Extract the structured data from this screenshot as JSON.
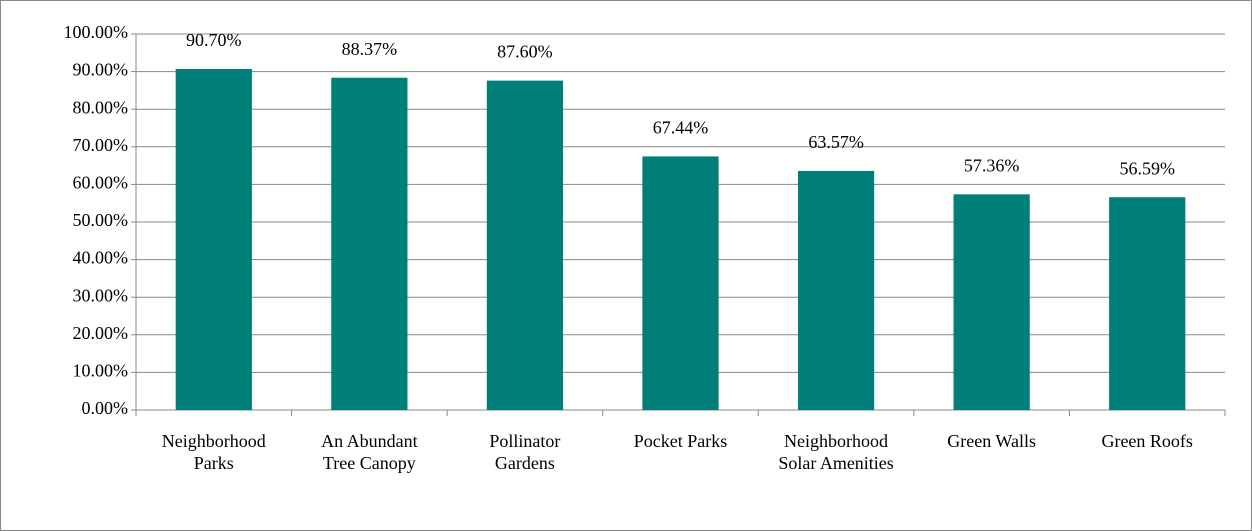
{
  "chart_data": {
    "type": "bar",
    "categories": [
      "Neighborhood Parks",
      "An Abundant Tree Canopy",
      "Pollinator Gardens",
      "Pocket Parks",
      "Neighborhood Solar Amenities",
      "Green Walls",
      "Green Roofs"
    ],
    "values": [
      90.7,
      88.37,
      87.6,
      67.44,
      63.57,
      57.36,
      56.59
    ],
    "value_labels": [
      "90.70%",
      "88.37%",
      "87.60%",
      "67.44%",
      "63.57%",
      "57.36%",
      "56.59%"
    ],
    "color": "#007f78",
    "ylim": [
      0,
      100
    ],
    "yticks": [
      {
        "value": 0,
        "label": "0.00%"
      },
      {
        "value": 10,
        "label": "10.00%"
      },
      {
        "value": 20,
        "label": "20.00%"
      },
      {
        "value": 30,
        "label": "30.00%"
      },
      {
        "value": 40,
        "label": "40.00%"
      },
      {
        "value": 50,
        "label": "50.00%"
      },
      {
        "value": 60,
        "label": "60.00%"
      },
      {
        "value": 70,
        "label": "70.00%"
      },
      {
        "value": 80,
        "label": "80.00%"
      },
      {
        "value": 90,
        "label": "90.00%"
      },
      {
        "value": 100,
        "label": "100.00%"
      }
    ],
    "grid": true
  }
}
